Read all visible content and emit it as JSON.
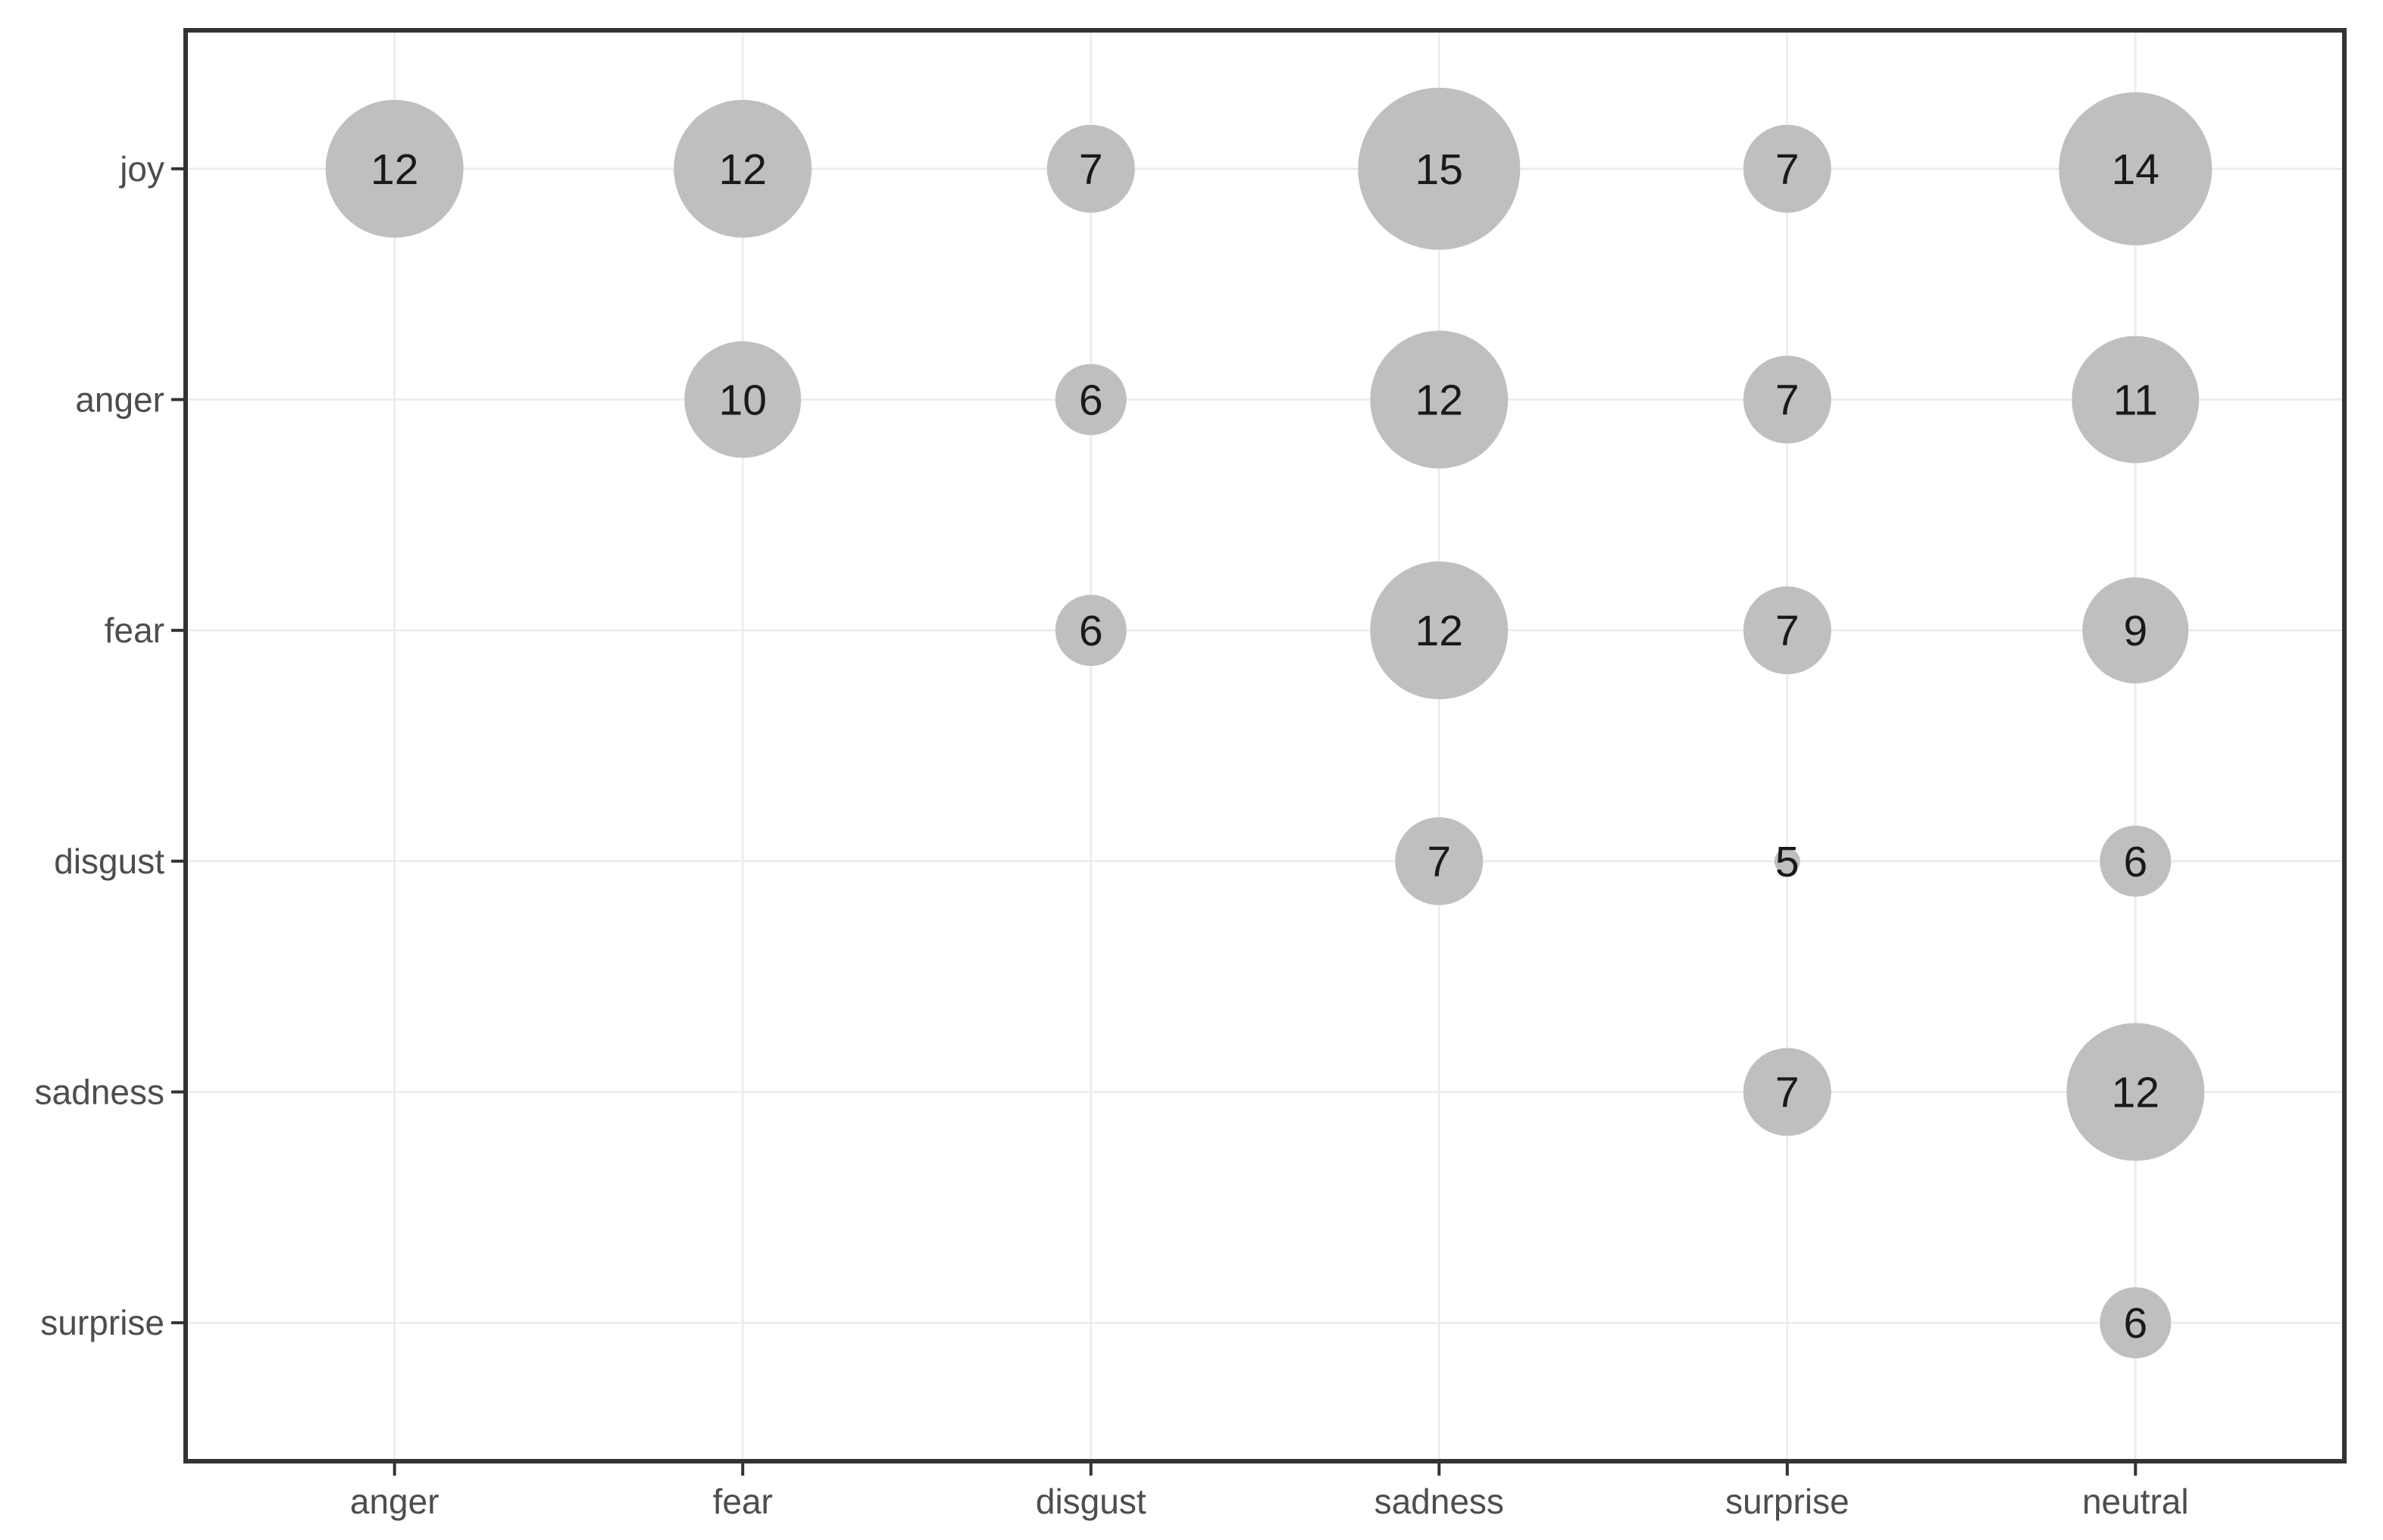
{
  "chart_data": {
    "type": "scatter",
    "variant": "bubble-matrix",
    "title": "",
    "xlabel": "",
    "ylabel": "",
    "x_categories": [
      "anger",
      "fear",
      "disgust",
      "sadness",
      "surprise",
      "neutral"
    ],
    "y_categories": [
      "joy",
      "anger",
      "fear",
      "disgust",
      "sadness",
      "surprise"
    ],
    "points": [
      {
        "y": "joy",
        "x": "anger",
        "value": 12
      },
      {
        "y": "joy",
        "x": "fear",
        "value": 12
      },
      {
        "y": "joy",
        "x": "disgust",
        "value": 7
      },
      {
        "y": "joy",
        "x": "sadness",
        "value": 15
      },
      {
        "y": "joy",
        "x": "surprise",
        "value": 7
      },
      {
        "y": "joy",
        "x": "neutral",
        "value": 14
      },
      {
        "y": "anger",
        "x": "fear",
        "value": 10
      },
      {
        "y": "anger",
        "x": "disgust",
        "value": 6
      },
      {
        "y": "anger",
        "x": "sadness",
        "value": 12
      },
      {
        "y": "anger",
        "x": "surprise",
        "value": 7
      },
      {
        "y": "anger",
        "x": "neutral",
        "value": 11
      },
      {
        "y": "fear",
        "x": "disgust",
        "value": 6
      },
      {
        "y": "fear",
        "x": "sadness",
        "value": 12
      },
      {
        "y": "fear",
        "x": "surprise",
        "value": 7
      },
      {
        "y": "fear",
        "x": "neutral",
        "value": 9
      },
      {
        "y": "disgust",
        "x": "sadness",
        "value": 7
      },
      {
        "y": "disgust",
        "x": "surprise",
        "value": 5
      },
      {
        "y": "disgust",
        "x": "neutral",
        "value": 6
      },
      {
        "y": "sadness",
        "x": "surprise",
        "value": 7
      },
      {
        "y": "sadness",
        "x": "neutral",
        "value": 12
      },
      {
        "y": "surprise",
        "x": "neutral",
        "value": 6
      }
    ],
    "value_range": [
      5,
      15
    ],
    "grid": true,
    "legend_position": "none",
    "style": {
      "bubble_fill": "#bfbfbf",
      "value_label_color": "#1a1a1a",
      "axis_text_color": "#4d4d4d",
      "grid_color": "#ebebeb",
      "panel_border_color": "#333333",
      "tick_color": "#333333",
      "background": "#ffffff"
    }
  }
}
